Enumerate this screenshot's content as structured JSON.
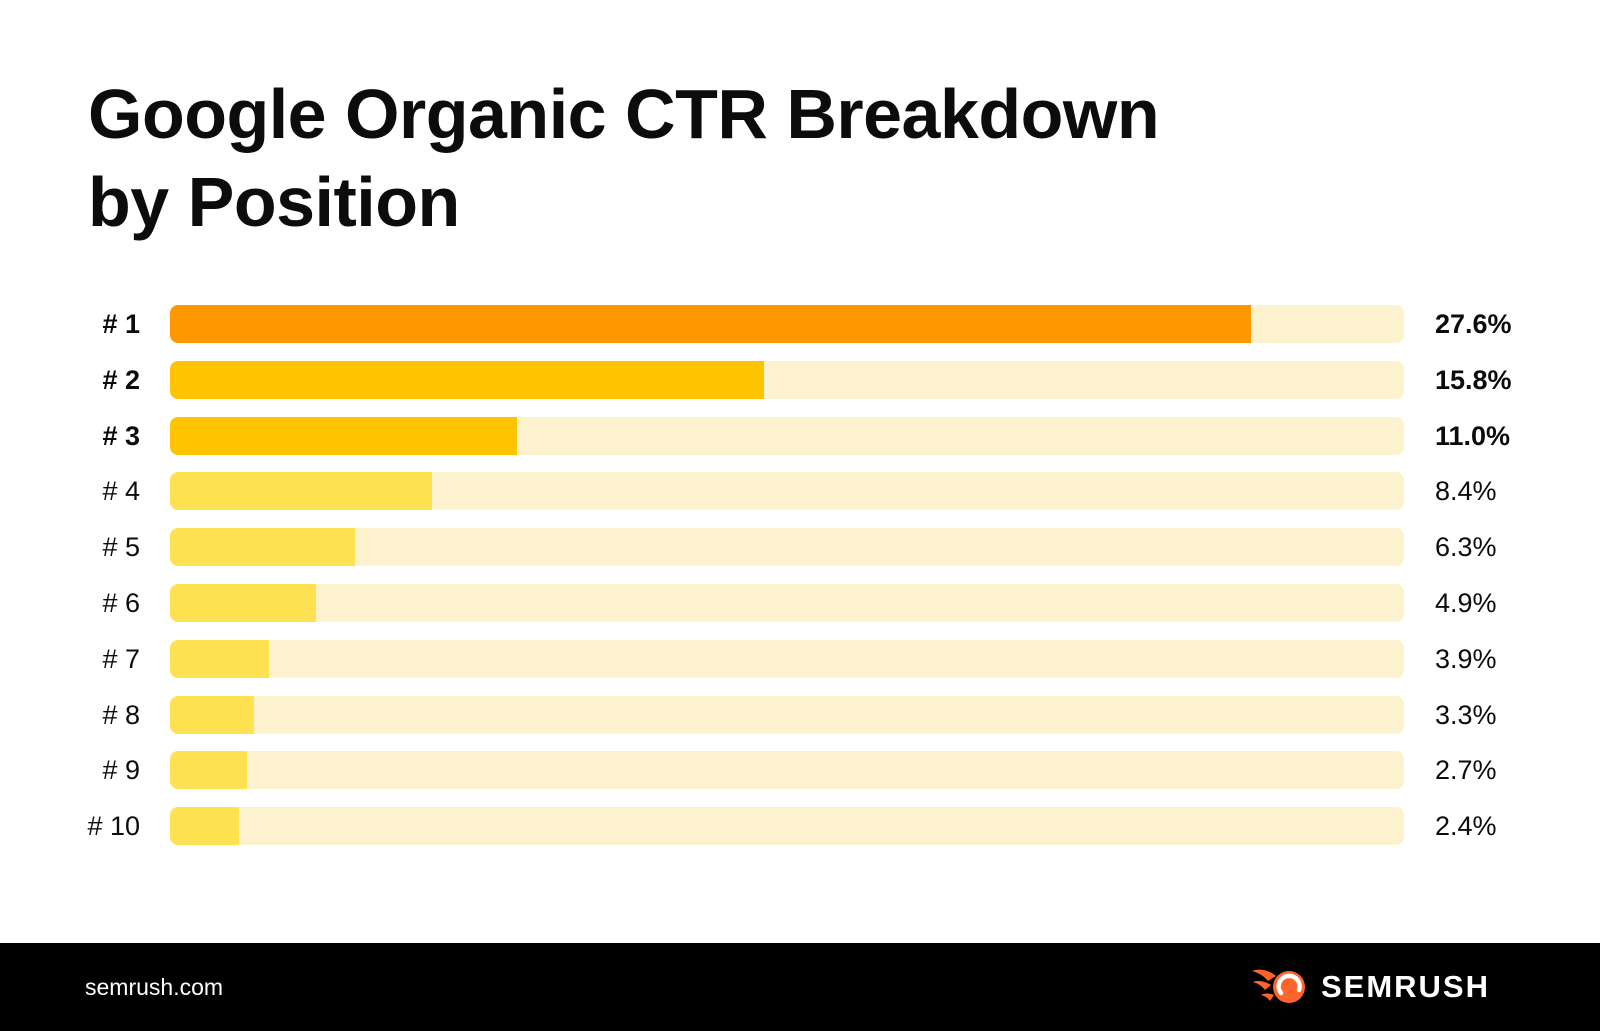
{
  "title_lines": [
    "Google Organic CTR Breakdown",
    "by Position"
  ],
  "chart_data": {
    "type": "bar",
    "orientation": "horizontal",
    "title": "Google Organic CTR Breakdown by Position",
    "categories": [
      "# 1",
      "# 2",
      "# 3",
      "# 4",
      "# 5",
      "# 6",
      "# 7",
      "# 8",
      "# 9",
      "# 10"
    ],
    "values": [
      27.6,
      15.8,
      11.0,
      8.4,
      6.3,
      4.9,
      3.9,
      3.3,
      2.7,
      2.4
    ],
    "value_labels": [
      "27.6%",
      "15.8%",
      "11.0%",
      "8.4%",
      "6.3%",
      "4.9%",
      "3.9%",
      "3.3%",
      "2.7%",
      "2.4%"
    ],
    "unit": "%",
    "xlabel": "",
    "ylabel": "",
    "grid": false,
    "legend": false,
    "bold_rows": 3,
    "bar_colors": [
      "#FF9800",
      "#FFC400",
      "#FFC400",
      "#FFE251",
      "#FFE251",
      "#FFE251",
      "#FFE251",
      "#FFE251",
      "#FFE251",
      "#FFE251"
    ],
    "track_color": "#FDF2CE",
    "bar_fill_fractions": [
      0.876,
      0.481,
      0.281,
      0.212,
      0.15,
      0.118,
      0.08,
      0.068,
      0.062,
      0.056
    ]
  },
  "footer": {
    "site": "semrush.com",
    "brand": "SEMRUSH"
  },
  "colors": {
    "accent_orange": "#FF9800",
    "gold": "#FFC400",
    "yellow": "#FFE251",
    "track": "#FDF2CE",
    "text": "#0C0C0C",
    "footer_bg": "#000000",
    "logo_flame": "#FF642D",
    "logo_text": "#FFFFFF"
  }
}
